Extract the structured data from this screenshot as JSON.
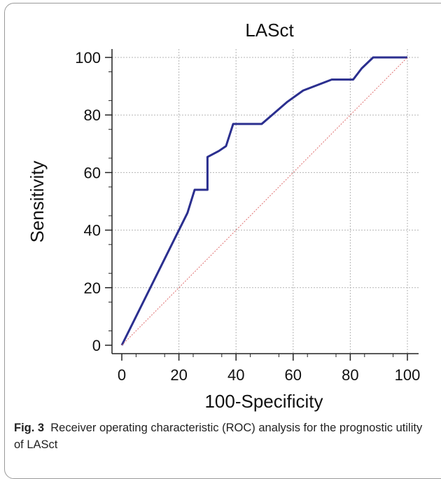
{
  "chart_data": {
    "type": "line",
    "title": "LASct",
    "xlabel": "100-Specificity",
    "ylabel": "Sensitivity",
    "xlim": [
      0,
      100
    ],
    "ylim": [
      0,
      100
    ],
    "xticks": [
      "0",
      "20",
      "40",
      "60",
      "80",
      "100"
    ],
    "yticks": [
      "0",
      "20",
      "40",
      "60",
      "80",
      "100"
    ],
    "grid": true,
    "series": [
      {
        "color": "#2b2f8f",
        "points": [
          [
            0,
            0
          ],
          [
            23,
            46
          ],
          [
            25.5,
            54
          ],
          [
            30,
            54
          ],
          [
            30,
            65.4
          ],
          [
            34,
            67.5
          ],
          [
            36.5,
            69.2
          ],
          [
            39,
            76.9
          ],
          [
            49,
            76.9
          ],
          [
            58,
            84.6
          ],
          [
            63.5,
            88.5
          ],
          [
            73.5,
            92.3
          ],
          [
            81,
            92.3
          ],
          [
            84,
            96.2
          ],
          [
            88,
            100
          ],
          [
            100,
            100
          ]
        ]
      },
      {
        "color": "#e07070",
        "dashed": true,
        "points": [
          [
            0,
            0
          ],
          [
            100,
            100
          ]
        ]
      }
    ]
  },
  "caption": {
    "label": "Fig. 3",
    "text": "Receiver operating characteristic (ROC) analysis for the prognostic utility of LASct"
  }
}
